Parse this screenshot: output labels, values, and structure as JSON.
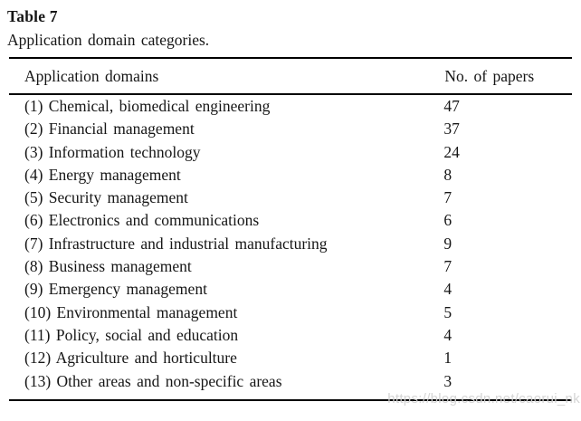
{
  "colors": {
    "text": "#161616",
    "rule": "#000000",
    "watermark": "#d3d3d3",
    "background": "#ffffff"
  },
  "table": {
    "label": "Table 7",
    "caption": "Application domain categories.",
    "columns": [
      "Application domains",
      "No. of papers"
    ],
    "rows": [
      {
        "domain": "(1) Chemical, biomedical engineering",
        "papers": "47"
      },
      {
        "domain": "(2) Financial management",
        "papers": "37"
      },
      {
        "domain": "(3) Information technology",
        "papers": "24"
      },
      {
        "domain": "(4) Energy management",
        "papers": "8"
      },
      {
        "domain": "(5) Security management",
        "papers": "7"
      },
      {
        "domain": "(6) Electronics and communications",
        "papers": "6"
      },
      {
        "domain": "(7) Infrastructure and industrial manufacturing",
        "papers": "9"
      },
      {
        "domain": "(8) Business management",
        "papers": "7"
      },
      {
        "domain": "(9) Emergency management",
        "papers": "4"
      },
      {
        "domain": "(10) Environmental management",
        "papers": "5"
      },
      {
        "domain": "(11) Policy, social and education",
        "papers": "4"
      },
      {
        "domain": "(12) Agriculture and horticulture",
        "papers": "1"
      },
      {
        "domain": "(13) Other areas and non-specific areas",
        "papers": "3"
      }
    ]
  },
  "watermark": {
    "text": "https://blog.csdn.net/caorui_nk"
  }
}
